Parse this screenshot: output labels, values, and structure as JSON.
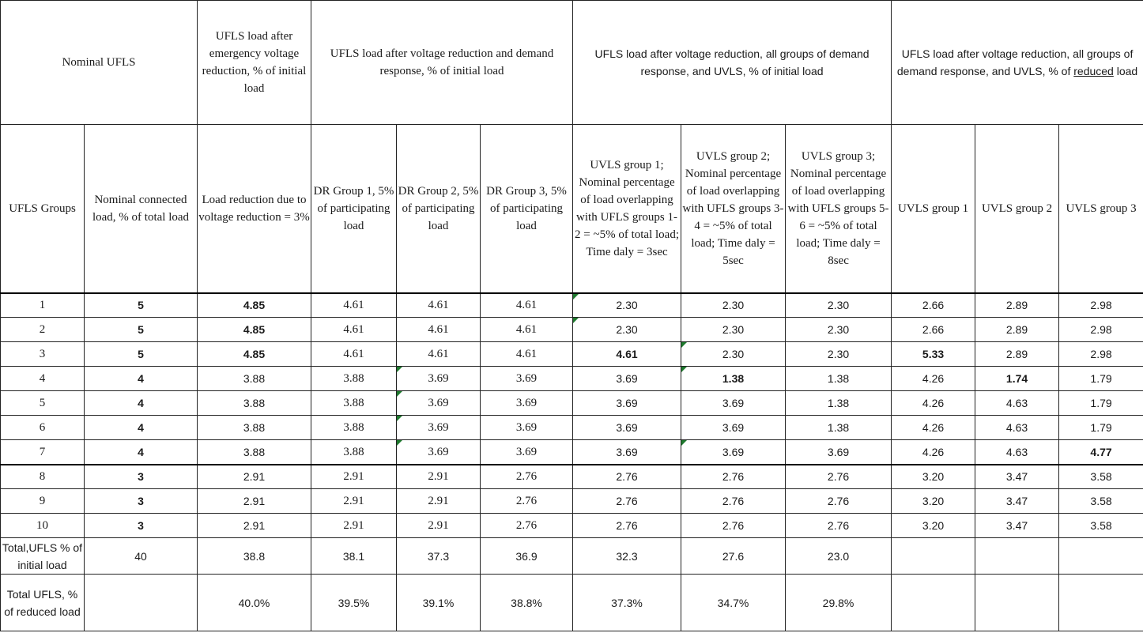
{
  "header": {
    "nominal_ufls": "Nominal UFLS",
    "after_voltage": "UFLS  load after emergency voltage reduction, % of initial load",
    "after_dr": "UFLS  load after voltage reduction and demand response, % of initial load",
    "after_uvls": "UFLS  load after voltage reduction, all groups of demand response, and UVLS, % of initial load",
    "after_uvls_reduced_pre": "UFLS  load after voltage reduction, all groups of demand response, and UVLS, % of ",
    "after_uvls_reduced_ul": "reduced",
    "after_uvls_reduced_post": " load"
  },
  "subheader": {
    "ufls_groups": "UFLS Groups",
    "nominal_load": "Nominal connected load, % of total load",
    "load_reduction": "Load reduction due to voltage reduction = 3%",
    "dr1": "DR Group 1, 5% of participating load",
    "dr2": "DR Group 2, 5% of participating load",
    "dr3": "DR Group 3, 5% of participating load",
    "uvls1": "UVLS group 1; Nominal percentage of  load overlapping with UFLS groups 1-2 = ~5% of total load; Time daly = 3sec",
    "uvls2": "UVLS group 2; Nominal percentage of load overlapping with UFLS groups 3-4 = ~5% of total load; Time daly = 5sec",
    "uvls3": "UVLS group 3; Nominal percentage of load overlapping with UFLS groups 5-6 = ~5% of total load; Time daly = 8sec",
    "r_uvls1": "UVLS group 1",
    "r_uvls2": "UVLS group 2",
    "r_uvls3": "UVLS group 3"
  },
  "rows": [
    {
      "group": "1",
      "nominal": "5",
      "vr": "4.85",
      "dr1": "4.61",
      "dr2": "4.61",
      "dr3": "4.61",
      "u1": "2.30",
      "u2": "2.30",
      "u3": "2.30",
      "r1": "2.66",
      "r2": "2.89",
      "r3": "2.98"
    },
    {
      "group": "2",
      "nominal": "5",
      "vr": "4.85",
      "dr1": "4.61",
      "dr2": "4.61",
      "dr3": "4.61",
      "u1": "2.30",
      "u2": "2.30",
      "u3": "2.30",
      "r1": "2.66",
      "r2": "2.89",
      "r3": "2.98"
    },
    {
      "group": "3",
      "nominal": "5",
      "vr": "4.85",
      "dr1": "4.61",
      "dr2": "4.61",
      "dr3": "4.61",
      "u1": "4.61",
      "u2": "2.30",
      "u3": "2.30",
      "r1": "5.33",
      "r2": "2.89",
      "r3": "2.98"
    },
    {
      "group": "4",
      "nominal": "4",
      "vr": "3.88",
      "dr1": "3.88",
      "dr2": "3.69",
      "dr3": "3.69",
      "u1": "3.69",
      "u2": "1.38",
      "u3": "1.38",
      "r1": "4.26",
      "r2": "1.74",
      "r3": "1.79"
    },
    {
      "group": "5",
      "nominal": "4",
      "vr": "3.88",
      "dr1": "3.88",
      "dr2": "3.69",
      "dr3": "3.69",
      "u1": "3.69",
      "u2": "3.69",
      "u3": "1.38",
      "r1": "4.26",
      "r2": "4.63",
      "r3": "1.79"
    },
    {
      "group": "6",
      "nominal": "4",
      "vr": "3.88",
      "dr1": "3.88",
      "dr2": "3.69",
      "dr3": "3.69",
      "u1": "3.69",
      "u2": "3.69",
      "u3": "1.38",
      "r1": "4.26",
      "r2": "4.63",
      "r3": "1.79"
    },
    {
      "group": "7",
      "nominal": "4",
      "vr": "3.88",
      "dr1": "3.88",
      "dr2": "3.69",
      "dr3": "3.69",
      "u1": "3.69",
      "u2": "3.69",
      "u3": "3.69",
      "r1": "4.26",
      "r2": "4.63",
      "r3": "4.77"
    },
    {
      "group": "8",
      "nominal": "3",
      "vr": "2.91",
      "dr1": "2.91",
      "dr2": "2.91",
      "dr3": "2.76",
      "u1": "2.76",
      "u2": "2.76",
      "u3": "2.76",
      "r1": "3.20",
      "r2": "3.47",
      "r3": "3.58"
    },
    {
      "group": "9",
      "nominal": "3",
      "vr": "2.91",
      "dr1": "2.91",
      "dr2": "2.91",
      "dr3": "2.76",
      "u1": "2.76",
      "u2": "2.76",
      "u3": "2.76",
      "r1": "3.20",
      "r2": "3.47",
      "r3": "3.58"
    },
    {
      "group": "10",
      "nominal": "3",
      "vr": "2.91",
      "dr1": "2.91",
      "dr2": "2.91",
      "dr3": "2.76",
      "u1": "2.76",
      "u2": "2.76",
      "u3": "2.76",
      "r1": "3.20",
      "r2": "3.47",
      "r3": "3.58"
    }
  ],
  "total_initial": {
    "label": "Total,UFLS % of initial load",
    "nominal": "40",
    "vr": "38.8",
    "dr1": "38.1",
    "dr2": "37.3",
    "dr3": "36.9",
    "u1": "32.3",
    "u2": "27.6",
    "u3": "23.0"
  },
  "total_reduced": {
    "label": "Total UFLS, % of reduced load",
    "vr": "40.0%",
    "dr1": "39.5%",
    "dr2": "39.1%",
    "dr3": "38.8%",
    "u1": "37.3%",
    "u2": "34.7%",
    "u3": "29.8%"
  },
  "colors": {
    "marker": "#1f7a2e",
    "border": "#222222"
  }
}
